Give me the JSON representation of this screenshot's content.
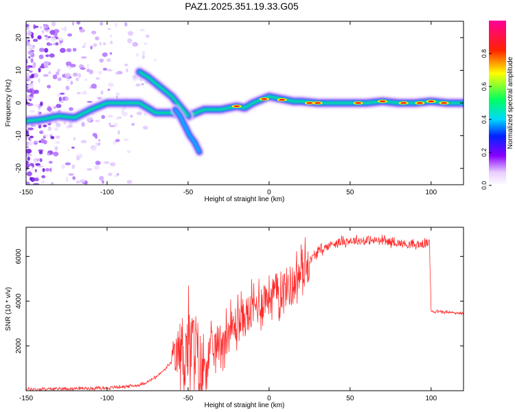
{
  "title": "PAZ1.2025.351.19.33.G05",
  "colors": {
    "snr_line": "#ff2a2a",
    "spectrum_track": "#00e070",
    "spectrum_core": "#ff2020",
    "speckle": "#8a2be2"
  },
  "chart_data": [
    {
      "type": "heatmap",
      "xlabel": "Height of straight line (km)",
      "ylabel": "Frequency (Hz)",
      "xlim": [
        -150,
        120
      ],
      "ylim": [
        -25,
        25
      ],
      "xticks": [
        -150,
        -100,
        -50,
        0,
        50,
        100
      ],
      "xtick_labels": [
        "-150",
        "-100",
        "-50",
        "0",
        "50",
        "100"
      ],
      "yticks": [
        -20,
        -10,
        0,
        10,
        20
      ],
      "ytick_labels": [
        "-20",
        "-10",
        "0",
        "10",
        "20"
      ],
      "colorbar": {
        "label": "Normalized spectral amplitude",
        "range": [
          0,
          1
        ],
        "ticks": [
          0.0,
          0.2,
          0.4,
          0.6,
          0.8
        ],
        "tick_labels": [
          "0.0",
          "0.2",
          "0.4",
          "0.6",
          "0.8"
        ],
        "stops": [
          {
            "v": 0.0,
            "c": "#ffffff"
          },
          {
            "v": 0.08,
            "c": "#e8ccff"
          },
          {
            "v": 0.18,
            "c": "#8800ff"
          },
          {
            "v": 0.3,
            "c": "#0022ff"
          },
          {
            "v": 0.4,
            "c": "#00d8ff"
          },
          {
            "v": 0.52,
            "c": "#00ff60"
          },
          {
            "v": 0.68,
            "c": "#ffff00"
          },
          {
            "v": 0.82,
            "c": "#ff2200"
          },
          {
            "v": 1.0,
            "c": "#ff0099"
          }
        ]
      },
      "main_track": [
        [
          -150,
          -5.5
        ],
        [
          -140,
          -5
        ],
        [
          -130,
          -4
        ],
        [
          -120,
          -4.5
        ],
        [
          -110,
          -2
        ],
        [
          -100,
          0
        ],
        [
          -90,
          0
        ],
        [
          -80,
          0
        ],
        [
          -70,
          -3
        ],
        [
          -60,
          -3
        ],
        [
          -50,
          -4
        ],
        [
          -40,
          -2
        ],
        [
          -35,
          -2
        ],
        [
          -30,
          -2
        ],
        [
          -25,
          -1.5
        ],
        [
          -20,
          -1
        ],
        [
          -15,
          -1.5
        ],
        [
          -10,
          0
        ],
        [
          -5,
          1
        ],
        [
          0,
          2
        ],
        [
          5,
          1.5
        ],
        [
          10,
          1
        ],
        [
          15,
          0.5
        ],
        [
          20,
          0.5
        ],
        [
          30,
          0
        ],
        [
          40,
          0
        ],
        [
          50,
          0
        ],
        [
          60,
          0
        ],
        [
          70,
          0.5
        ],
        [
          80,
          0
        ],
        [
          90,
          0
        ],
        [
          100,
          0.5
        ],
        [
          110,
          0
        ],
        [
          120,
          0
        ]
      ],
      "upper_branch": [
        [
          -80,
          9.5
        ],
        [
          -75,
          8
        ],
        [
          -70,
          6
        ],
        [
          -65,
          4
        ],
        [
          -60,
          2
        ],
        [
          -55,
          -1
        ],
        [
          -50,
          -4
        ]
      ],
      "lower_branch": [
        [
          -58,
          -2
        ],
        [
          -55,
          -4
        ],
        [
          -52,
          -7
        ],
        [
          -49,
          -10
        ],
        [
          -46,
          -12
        ],
        [
          -43,
          -15
        ]
      ]
    },
    {
      "type": "line",
      "xlabel": "Height of straight line (km)",
      "ylabel": "SNR (10 * v/v)",
      "xlim": [
        -150,
        120
      ],
      "ylim": [
        0,
        7300
      ],
      "xticks": [
        -150,
        -100,
        -50,
        0,
        50,
        100
      ],
      "xtick_labels": [
        "-150",
        "-100",
        "-50",
        "0",
        "50",
        "100"
      ],
      "yticks": [
        2000,
        4000,
        6000
      ],
      "ytick_labels": [
        "2000",
        "4000",
        "6000"
      ],
      "series": [
        {
          "name": "SNR",
          "x": [
            -150,
            -120,
            -100,
            -90,
            -80,
            -75,
            -70,
            -65,
            -60,
            -55,
            -50,
            -45,
            -42,
            -40,
            -35,
            -30,
            -25,
            -20,
            -15,
            -10,
            -5,
            0,
            5,
            10,
            15,
            20,
            25,
            30,
            35,
            40,
            50,
            60,
            70,
            80,
            90,
            99,
            100,
            101,
            110,
            120
          ],
          "values": [
            60,
            100,
            120,
            180,
            250,
            400,
            600,
            900,
            1300,
            1700,
            2000,
            1800,
            700,
            1200,
            1800,
            2200,
            2600,
            3000,
            3300,
            3600,
            4000,
            4300,
            4400,
            4600,
            4800,
            5300,
            5800,
            6200,
            6400,
            6600,
            6700,
            6700,
            6700,
            6600,
            6500,
            6600,
            3600,
            3550,
            3500,
            3450
          ]
        }
      ]
    }
  ]
}
